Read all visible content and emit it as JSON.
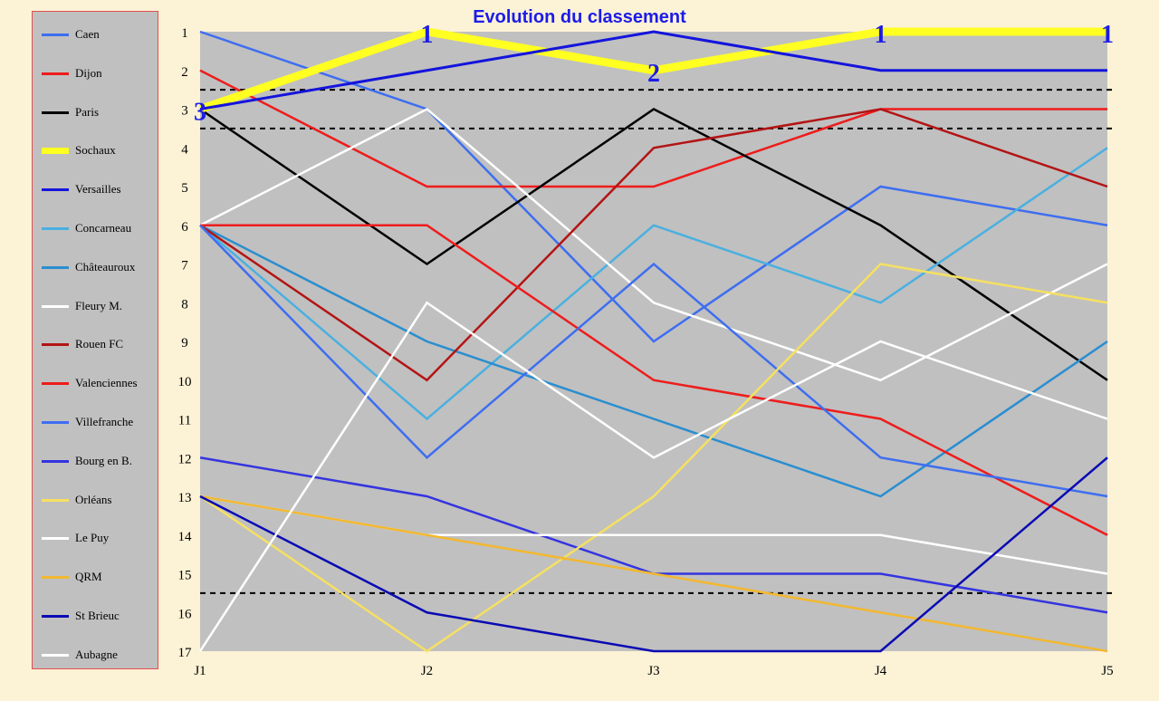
{
  "chart_data": {
    "type": "line",
    "title": "Evolution du classement",
    "x": [
      "J1",
      "J2",
      "J3",
      "J4",
      "J5"
    ],
    "yticks": [
      1,
      2,
      3,
      4,
      5,
      6,
      7,
      8,
      9,
      10,
      11,
      12,
      13,
      14,
      15,
      16,
      17
    ],
    "ylim": [
      1,
      17
    ],
    "y_inverted": true,
    "reference_lines": [
      2.5,
      3.5,
      15.5
    ],
    "series": [
      {
        "name": "Caen",
        "color": "#3e6ef0",
        "values": [
          1,
          3,
          9,
          5,
          6
        ]
      },
      {
        "name": "Dijon",
        "color": "#ee1c1c",
        "values": [
          2,
          5,
          5,
          3,
          3
        ]
      },
      {
        "name": "Paris",
        "color": "#000000",
        "values": [
          3,
          7,
          3,
          6,
          10
        ]
      },
      {
        "name": "Sochaux",
        "color": "#ffff22",
        "values": [
          3,
          1,
          2,
          1,
          1
        ]
      },
      {
        "name": "Versailles",
        "color": "#1414dc",
        "values": [
          3,
          2,
          1,
          2,
          2
        ]
      },
      {
        "name": "Concarneau",
        "color": "#4ab0e0",
        "values": [
          6,
          11,
          6,
          8,
          4
        ]
      },
      {
        "name": "Châteauroux",
        "color": "#2a8ed0",
        "values": [
          6,
          9,
          11,
          13,
          9
        ]
      },
      {
        "name": "Fleury M.",
        "color": "#ffffff",
        "values": [
          6,
          3,
          8,
          10,
          7
        ]
      },
      {
        "name": "Rouen FC",
        "color": "#b41414",
        "values": [
          6,
          10,
          4,
          3,
          5
        ]
      },
      {
        "name": "Valenciennes",
        "color": "#ee1c1c",
        "values": [
          6,
          6,
          10,
          11,
          14
        ]
      },
      {
        "name": "Villefranche",
        "color": "#3e6ef0",
        "values": [
          6,
          12,
          7,
          12,
          13
        ]
      },
      {
        "name": "Bourg en B.",
        "color": "#3434e0",
        "values": [
          12,
          13,
          15,
          15,
          16
        ]
      },
      {
        "name": "Orléans",
        "color": "#f6e060",
        "values": [
          13,
          17,
          13,
          7,
          8
        ]
      },
      {
        "name": "Le Puy",
        "color": "#ffffff",
        "values": [
          13,
          14,
          14,
          14,
          15
        ]
      },
      {
        "name": "QRM",
        "color": "#f2b830",
        "values": [
          13,
          14,
          15,
          16,
          17
        ]
      },
      {
        "name": "St Brieuc",
        "color": "#0a0ab4",
        "values": [
          13,
          16,
          17,
          17,
          12
        ]
      },
      {
        "name": "Aubagne",
        "color": "#ffffff",
        "values": [
          17,
          8,
          12,
          9,
          11
        ]
      }
    ],
    "highlight_labels": [
      {
        "x": "J1",
        "y": 3,
        "text": "3"
      },
      {
        "x": "J2",
        "y": 1,
        "text": "1"
      },
      {
        "x": "J3",
        "y": 2,
        "text": "2"
      },
      {
        "x": "J4",
        "y": 1,
        "text": "1"
      },
      {
        "x": "J5",
        "y": 1,
        "text": "1"
      }
    ]
  }
}
